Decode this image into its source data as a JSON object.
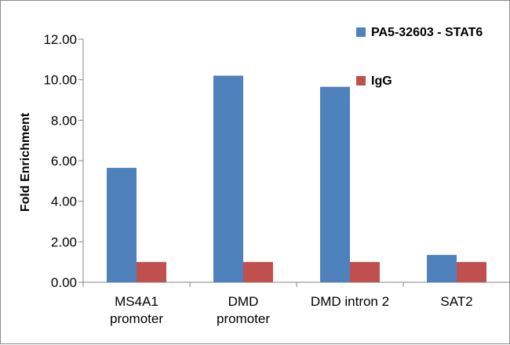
{
  "chart_data": {
    "type": "bar",
    "title": "",
    "xlabel": "",
    "ylabel": "Fold Enrichment",
    "ylim": [
      0,
      12
    ],
    "ytick_step": 2,
    "ytick_labels": [
      "0.00",
      "2.00",
      "4.00",
      "6.00",
      "8.00",
      "10.00",
      "12.00"
    ],
    "categories": [
      [
        "MS4A1",
        "promoter"
      ],
      [
        "DMD",
        "promoter"
      ],
      [
        "DMD intron 2"
      ],
      [
        "SAT2"
      ]
    ],
    "series": [
      {
        "name": "PA5-32603 - STAT6",
        "color": "#4f81bd",
        "values": [
          5.65,
          10.2,
          9.65,
          1.35
        ]
      },
      {
        "name": "IgG",
        "color": "#c0504d",
        "values": [
          1.0,
          1.0,
          1.0,
          1.0
        ]
      }
    ],
    "legend_position": "top-right",
    "grid": false
  }
}
